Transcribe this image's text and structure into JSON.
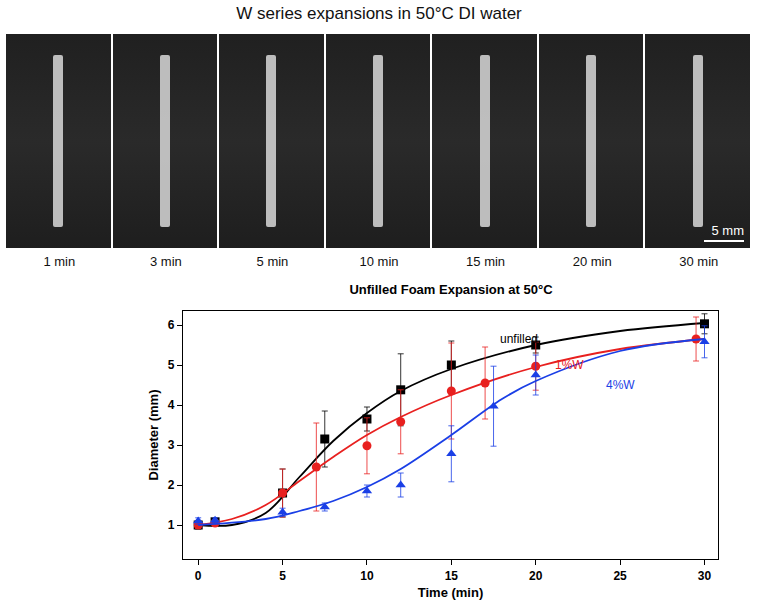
{
  "header": {
    "title": "W series expansions in 50°C DI water",
    "panels": [
      "1 min",
      "3 min",
      "5 min",
      "10 min",
      "15 min",
      "20 min",
      "30 min"
    ],
    "scale_bar": "5 mm"
  },
  "chart_data": {
    "type": "scatter",
    "title": "Unfilled Foam Expansion at 50°C",
    "x_label": "Time (min)",
    "y_label": "Diameter (mm)",
    "xlim": [
      -0.9,
      30.8
    ],
    "xticks": [
      0,
      5,
      10,
      15,
      20,
      25,
      30
    ],
    "ylim": [
      0.15,
      6.35
    ],
    "yticks": [
      1,
      2,
      3,
      4,
      5,
      6
    ],
    "grid": false,
    "series": [
      {
        "name": "unfilled",
        "color": "#000000",
        "marker": "square",
        "line_style": "solid",
        "x": [
          0,
          1,
          5,
          7.5,
          10,
          12,
          15,
          20,
          30
        ],
        "values": [
          1.0,
          1.08,
          1.8,
          3.15,
          3.65,
          4.38,
          5.0,
          5.5,
          6.03
        ],
        "errors": [
          0.1,
          0.08,
          0.6,
          0.7,
          0.3,
          0.9,
          0.6,
          0.2,
          0.25
        ],
        "fit": {
          "x": [
            0,
            2,
            4,
            6,
            8,
            10,
            12,
            15,
            20,
            25,
            30
          ],
          "values": [
            1.0,
            1.0,
            1.3,
            2.2,
            3.1,
            3.8,
            4.35,
            4.9,
            5.5,
            5.85,
            6.05
          ]
        },
        "annotation": {
          "text": "unfilled",
          "x": 19.0,
          "y": 5.65
        }
      },
      {
        "name": "1%W",
        "color": "#e8201f",
        "marker": "circle",
        "line_style": "solid",
        "x": [
          0,
          1,
          5,
          7,
          10,
          12,
          15,
          17,
          20,
          29.5
        ],
        "values": [
          1.0,
          1.05,
          1.8,
          2.45,
          2.98,
          3.58,
          4.35,
          4.55,
          4.97,
          5.65
        ],
        "errors": [
          0.08,
          0.06,
          0.6,
          1.1,
          0.7,
          0.8,
          1.2,
          0.9,
          0.6,
          0.55
        ],
        "fit": {
          "x": [
            0,
            2,
            4,
            6,
            8,
            10,
            12,
            15,
            20,
            25,
            30
          ],
          "values": [
            1.0,
            1.15,
            1.5,
            2.1,
            2.7,
            3.25,
            3.7,
            4.25,
            4.95,
            5.4,
            5.65
          ]
        },
        "annotation": {
          "text": "1%W",
          "x": 22.0,
          "y": 5.0
        }
      },
      {
        "name": "4%W",
        "color": "#1a3fe6",
        "marker": "triangle-up",
        "line_style": "solid",
        "x": [
          0,
          1,
          5,
          7.5,
          10,
          12,
          15,
          17.5,
          20,
          30
        ],
        "values": [
          1.1,
          1.12,
          1.32,
          1.45,
          1.85,
          2.0,
          2.78,
          3.97,
          4.75,
          5.58
        ],
        "errors": [
          0.08,
          0.06,
          0.1,
          0.1,
          0.15,
          0.3,
          0.7,
          1.0,
          0.5,
          0.4
        ],
        "fit": {
          "x": [
            0,
            4,
            6,
            8,
            10,
            12,
            15,
            18,
            20,
            25,
            30
          ],
          "values": [
            1.0,
            1.15,
            1.35,
            1.6,
            1.95,
            2.4,
            3.25,
            4.15,
            4.6,
            5.35,
            5.65
          ]
        },
        "annotation": {
          "text": "4%W",
          "x": 25.0,
          "y": 4.5
        }
      }
    ]
  }
}
